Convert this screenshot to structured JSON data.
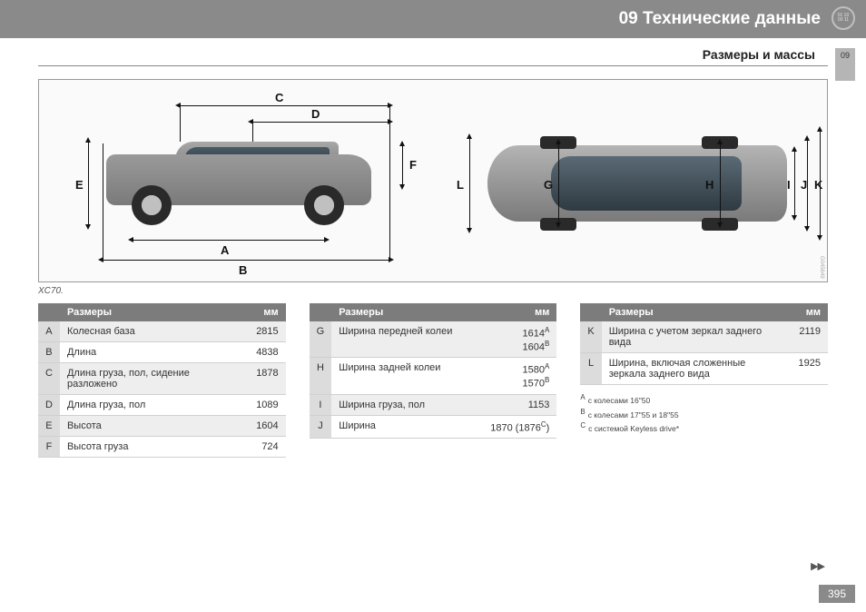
{
  "header": {
    "title": "09 Технические данные",
    "badge_line1": "01 10",
    "badge_line2": "00 11"
  },
  "section": {
    "title": "Размеры и массы",
    "tab": "09"
  },
  "diagram": {
    "caption": "XC70.",
    "labels": {
      "A": "A",
      "B": "B",
      "C": "C",
      "D": "D",
      "E": "E",
      "F": "F",
      "G": "G",
      "H": "H",
      "I": "I",
      "J": "J",
      "K": "K",
      "L": "L"
    },
    "watermark": "G045649"
  },
  "tables": {
    "header_dim": "Размеры",
    "header_mm": "мм",
    "t1": [
      {
        "k": "A",
        "label": "Колесная база",
        "v": "2815"
      },
      {
        "k": "B",
        "label": "Длина",
        "v": "4838"
      },
      {
        "k": "C",
        "label": "Длина груза, пол, сидение разложено",
        "v": "1878"
      },
      {
        "k": "D",
        "label": "Длина груза, пол",
        "v": "1089"
      },
      {
        "k": "E",
        "label": "Высота",
        "v": "1604"
      },
      {
        "k": "F",
        "label": "Высота груза",
        "v": "724"
      }
    ],
    "t2": [
      {
        "k": "G",
        "label": "Ширина передней колеи",
        "v": "1614<sup>A</sup><br>1604<sup>B</sup>"
      },
      {
        "k": "H",
        "label": "Ширина задней колеи",
        "v": "1580<sup>A</sup><br>1570<sup>B</sup>"
      },
      {
        "k": "I",
        "label": "Ширина груза, пол",
        "v": "1153"
      },
      {
        "k": "J",
        "label": "Ширина",
        "v": "1870 (1876<sup>C</sup>)"
      }
    ],
    "t3": [
      {
        "k": "K",
        "label": "Ширина с учетом зеркал заднего вида",
        "v": "2119"
      },
      {
        "k": "L",
        "label": "Ширина, включая сложенные зеркала заднего вида",
        "v": "1925"
      }
    ]
  },
  "footnotes": {
    "A": "с колесами 16\"50",
    "B": "с колесами 17\"55 и 18\"55",
    "C": "с системой Keyless drive*"
  },
  "pagenum": "395",
  "continue": "▶▶"
}
